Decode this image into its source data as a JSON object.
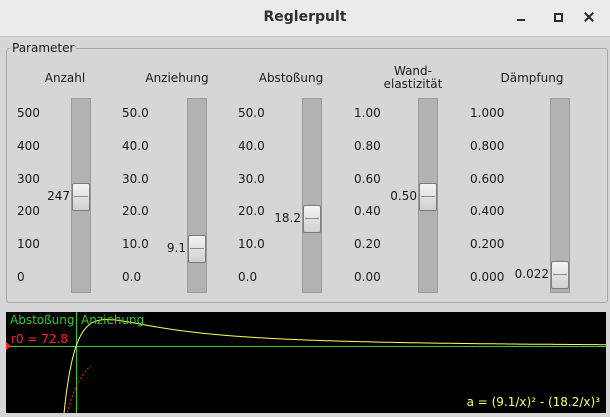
{
  "window": {
    "title": "Reglerpult"
  },
  "group": {
    "label": "Parameter"
  },
  "sliders": [
    {
      "id": "anzahl",
      "label": "Anzahl",
      "ticks": [
        "500",
        "400",
        "300",
        "200",
        "100",
        "0"
      ],
      "min": 0,
      "max": 500,
      "value": 247,
      "display": "247"
    },
    {
      "id": "anziehung",
      "label": "Anziehung",
      "ticks": [
        "50.0",
        "40.0",
        "30.0",
        "20.0",
        "10.0",
        "0.0"
      ],
      "min": 0,
      "max": 50,
      "value": 9.1,
      "display": "9.1"
    },
    {
      "id": "abstossung",
      "label": "Abstoßung",
      "ticks": [
        "50.0",
        "40.0",
        "30.0",
        "20.0",
        "10.0",
        "0.0"
      ],
      "min": 0,
      "max": 50,
      "value": 18.2,
      "display": "18.2"
    },
    {
      "id": "wandelastizitaet",
      "label": "Wand-\nelastizität",
      "ticks": [
        "1.00",
        "0.80",
        "0.60",
        "0.40",
        "0.20",
        "0.00"
      ],
      "min": 0,
      "max": 1,
      "value": 0.5,
      "display": "0.50"
    },
    {
      "id": "daempfung",
      "label": "Dämpfung",
      "ticks": [
        "1.000",
        "0.800",
        "0.600",
        "0.400",
        "0.200",
        "0.000"
      ],
      "min": 0,
      "max": 1,
      "value": 0.022,
      "display": "0.022"
    }
  ],
  "plot": {
    "repulsion_label": "Abstoßung",
    "attraction_label": "Anziehung",
    "r0_label": "r0 = 72.8",
    "formula": "a = (9.1/x)² - (18.2/x)³",
    "colors": {
      "background": "#000000",
      "repulsion": "#33cc33",
      "attraction": "#33cc33",
      "r0": "#ff2222",
      "axis": "#33cc33",
      "curve": "#ffff66",
      "formula": "#ffff66"
    }
  }
}
